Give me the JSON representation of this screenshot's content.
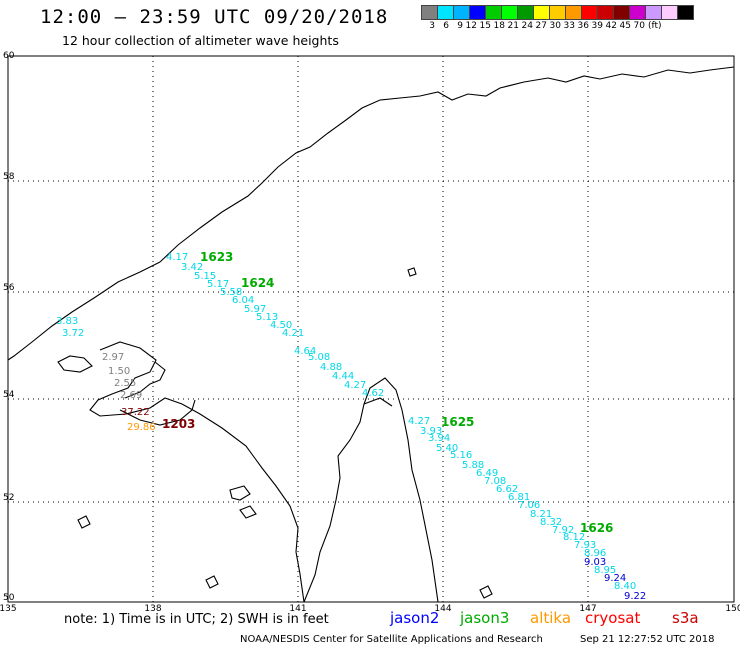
{
  "header": {
    "title": "12:00 – 23:59 UTC 09/20/2018",
    "subtitle": "12 hour collection of altimeter wave heights"
  },
  "scale": {
    "colors": [
      "#808080",
      "#00e5ff",
      "#00b3ff",
      "#0000ff",
      "#00cc00",
      "#00ff00",
      "#009900",
      "#ffff00",
      "#ffcc00",
      "#ff9900",
      "#ff0000",
      "#cc0000",
      "#800000",
      "#cc00cc",
      "#cc99ff",
      "#ffccff",
      "#000000"
    ],
    "labels": [
      "3",
      "6",
      "9",
      "12",
      "15",
      "18",
      "21",
      "24",
      "27",
      "30",
      "33",
      "36",
      "39",
      "42",
      "45",
      "70",
      "(ft)"
    ]
  },
  "axes": {
    "lon_ticks": [
      "135",
      "138",
      "141",
      "144",
      "147",
      "150"
    ],
    "lat_ticks": [
      "60",
      "58",
      "56",
      "54",
      "52",
      "50"
    ]
  },
  "tracks": [
    {
      "id": "1623",
      "color": "#00aa00",
      "label": "1623"
    },
    {
      "id": "1624",
      "color": "#00aa00",
      "label": "1624"
    },
    {
      "id": "1625",
      "color": "#00aa00",
      "label": "1625"
    },
    {
      "id": "1626",
      "color": "#00aa00",
      "label": "1626"
    },
    {
      "id": "1203",
      "color": "#800000",
      "label": "1203"
    }
  ],
  "wave_labels": [
    {
      "t": "4.17",
      "c": "#00d8e8"
    },
    {
      "t": "3.42",
      "c": "#00d8e8"
    },
    {
      "t": "5.15",
      "c": "#00d8e8"
    },
    {
      "t": "5.17",
      "c": "#00d8e8"
    },
    {
      "t": "5.58",
      "c": "#00d8e8"
    },
    {
      "t": "6.04",
      "c": "#00d8e8"
    },
    {
      "t": "5.97",
      "c": "#00d8e8"
    },
    {
      "t": "5.13",
      "c": "#00d8e8"
    },
    {
      "t": "4.50",
      "c": "#00d8e8"
    },
    {
      "t": "4.21",
      "c": "#00d8e8"
    },
    {
      "t": "4.64",
      "c": "#00d8e8"
    },
    {
      "t": "5.08",
      "c": "#00d8e8"
    },
    {
      "t": "4.88",
      "c": "#00d8e8"
    },
    {
      "t": "4.44",
      "c": "#00d8e8"
    },
    {
      "t": "4.27",
      "c": "#00d8e8"
    },
    {
      "t": "4.62",
      "c": "#00d8e8"
    },
    {
      "t": "3.83",
      "c": "#00d8e8"
    },
    {
      "t": "3.72",
      "c": "#00d8e8"
    },
    {
      "t": "2.97",
      "c": "#808080"
    },
    {
      "t": "1.50",
      "c": "#808080"
    },
    {
      "t": "2.55",
      "c": "#808080"
    },
    {
      "t": "2.69",
      "c": "#808080"
    },
    {
      "t": "37.22",
      "c": "#800000"
    },
    {
      "t": "29.86",
      "c": "#ff9900"
    },
    {
      "t": "4.27",
      "c": "#00d8e8"
    },
    {
      "t": "3.93",
      "c": "#00d8e8"
    },
    {
      "t": "3.94",
      "c": "#00d8e8"
    },
    {
      "t": "5.40",
      "c": "#00d8e8"
    },
    {
      "t": "5.16",
      "c": "#00d8e8"
    },
    {
      "t": "5.88",
      "c": "#00d8e8"
    },
    {
      "t": "6.49",
      "c": "#00d8e8"
    },
    {
      "t": "7.08",
      "c": "#00d8e8"
    },
    {
      "t": "6.62",
      "c": "#00d8e8"
    },
    {
      "t": "6.81",
      "c": "#00d8e8"
    },
    {
      "t": "7.06",
      "c": "#00d8e8"
    },
    {
      "t": "8.21",
      "c": "#00d8e8"
    },
    {
      "t": "8.32",
      "c": "#00d8e8"
    },
    {
      "t": "7.92",
      "c": "#00d8e8"
    },
    {
      "t": "8.12",
      "c": "#00d8e8"
    },
    {
      "t": "7.93",
      "c": "#00d8e8"
    },
    {
      "t": "8.96",
      "c": "#00d8e8"
    },
    {
      "t": "9.03",
      "c": "#0000cc"
    },
    {
      "t": "8.95",
      "c": "#00d8e8"
    },
    {
      "t": "9.24",
      "c": "#0000cc"
    },
    {
      "t": "8.40",
      "c": "#00d8e8"
    },
    {
      "t": "9.22",
      "c": "#0000cc"
    }
  ],
  "footer": {
    "note": "note: 1) Time is in UTC; 2) SWH is in feet",
    "satellites": [
      {
        "name": "jason2",
        "color": "#0000ff"
      },
      {
        "name": "jason3",
        "color": "#00aa00"
      },
      {
        "name": "altika",
        "color": "#ff9900"
      },
      {
        "name": "cryosat",
        "color": "#ff0000"
      },
      {
        "name": "s3a",
        "color": "#cc0000"
      }
    ],
    "credit": "NOAA/NESDIS Center for Satellite Applications and Research",
    "timestamp": "Sep 21 12:27:52 UTC 2018"
  }
}
